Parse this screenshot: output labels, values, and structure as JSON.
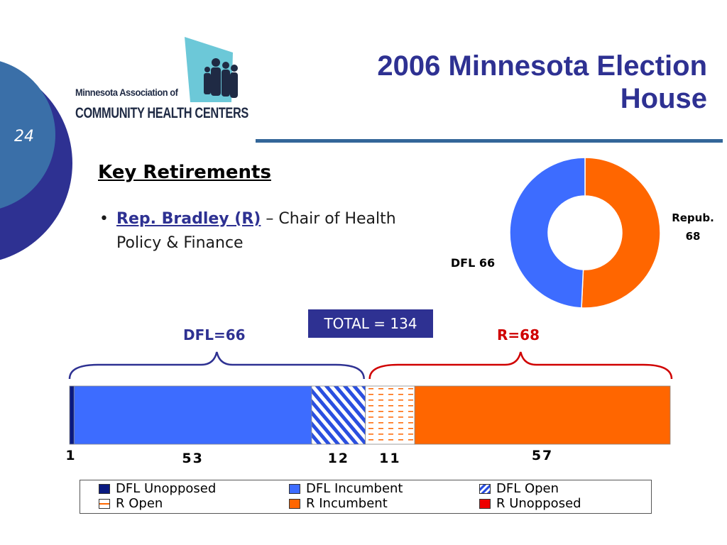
{
  "slide": {
    "number": "24",
    "title_line1": "2006 Minnesota Election",
    "title_line2": "House",
    "logo_line1": "Minnesota Association of",
    "logo_line2": "COMMUNITY HEALTH CENTERS"
  },
  "content": {
    "heading": "Key Retirements",
    "bullet_name": "Rep. Bradley (R)",
    "bullet_text": " – Chair of Health Policy & Finance",
    "total_label": "TOTAL = 134",
    "dfl_group_label": "DFL=66",
    "r_group_label": "R=68"
  },
  "colors": {
    "dfl_unopposed": "#0a1a80",
    "dfl_incumbent": "#3d6cff",
    "dfl_open": "#2a4fe0",
    "r_open": "#ff6600",
    "r_incumbent": "#ff6600",
    "r_unopposed": "#ee0000",
    "dfl_brace": "#2e3192",
    "r_brace": "#d00000"
  },
  "chart_data": [
    {
      "type": "pie",
      "variant": "donut",
      "slices": [
        {
          "label": "Repub.\n68",
          "label_line1": "Repub.",
          "label_line2": "68",
          "value": 68,
          "color": "#ff6600"
        },
        {
          "label": "DFL 66",
          "value": 66,
          "color": "#3d6cff"
        }
      ]
    },
    {
      "type": "bar",
      "variant": "stacked-horizontal",
      "total": 134,
      "segments": [
        {
          "name": "DFL Unopposed",
          "value": 1,
          "label": "1",
          "fill": "solid",
          "color": "#0a1a80"
        },
        {
          "name": "DFL Incumbent",
          "value": 53,
          "label": "53",
          "fill": "solid",
          "color": "#3d6cff"
        },
        {
          "name": "DFL Open",
          "value": 12,
          "label": "12",
          "fill": "hatch",
          "color": "#2a4fe0"
        },
        {
          "name": "R Open",
          "value": 11,
          "label": "11",
          "fill": "dashes",
          "color": "#ff6600"
        },
        {
          "name": "R Incumbent",
          "value": 57,
          "label": "57",
          "fill": "solid",
          "color": "#ff6600"
        },
        {
          "name": "R Unopposed",
          "value": 0,
          "label": "",
          "fill": "solid",
          "color": "#ee0000"
        }
      ],
      "legend": [
        "DFL Unopposed",
        "DFL Incumbent",
        "DFL Open",
        "R Open",
        "R Incumbent",
        "R Unopposed"
      ]
    }
  ]
}
